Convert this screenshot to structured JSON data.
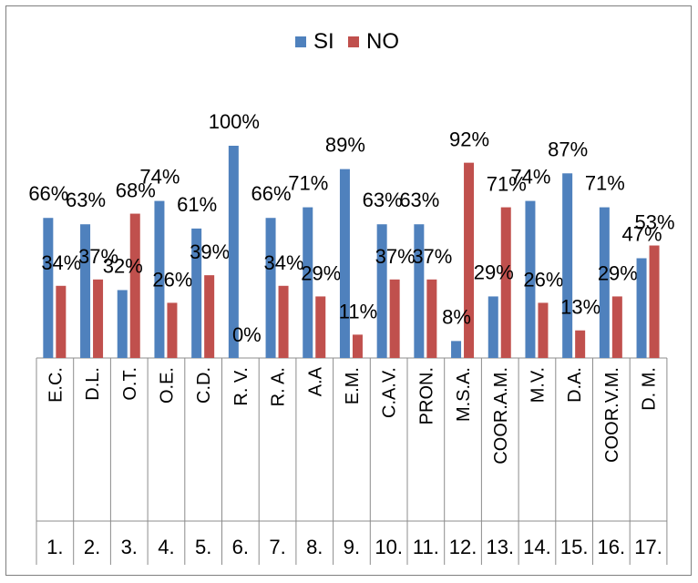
{
  "colors": {
    "si": "#4f81bd",
    "no": "#c0504d",
    "axis": "#8c8c8c"
  },
  "chart_data": {
    "type": "bar",
    "categories": [
      "E.C.",
      "D.L.",
      "O.T.",
      "O.E.",
      "C.D.",
      "R. V.",
      "R. A.",
      "A.A",
      "E.M.",
      "C.A.V.",
      "PRON.",
      "M.S.A.",
      "COOR.A.M.",
      "M.V.",
      "D.A.",
      "COOR.V.M.",
      "D. M."
    ],
    "numbers": [
      "1.",
      "2.",
      "3.",
      "4.",
      "5.",
      "6.",
      "7.",
      "8.",
      "9.",
      "10.",
      "11.",
      "12.",
      "13.",
      "14.",
      "15.",
      "16.",
      "17."
    ],
    "series": [
      {
        "name": "SI",
        "values": [
          66,
          63,
          32,
          74,
          61,
          100,
          66,
          71,
          89,
          63,
          63,
          8,
          29,
          74,
          87,
          71,
          47
        ]
      },
      {
        "name": "NO",
        "values": [
          34,
          37,
          68,
          26,
          39,
          0,
          34,
          29,
          11,
          37,
          37,
          92,
          71,
          26,
          13,
          29,
          53
        ]
      }
    ],
    "value_suffix": "%",
    "ylim": [
      0,
      100
    ],
    "legend_position": "top-center",
    "grid": false
  }
}
